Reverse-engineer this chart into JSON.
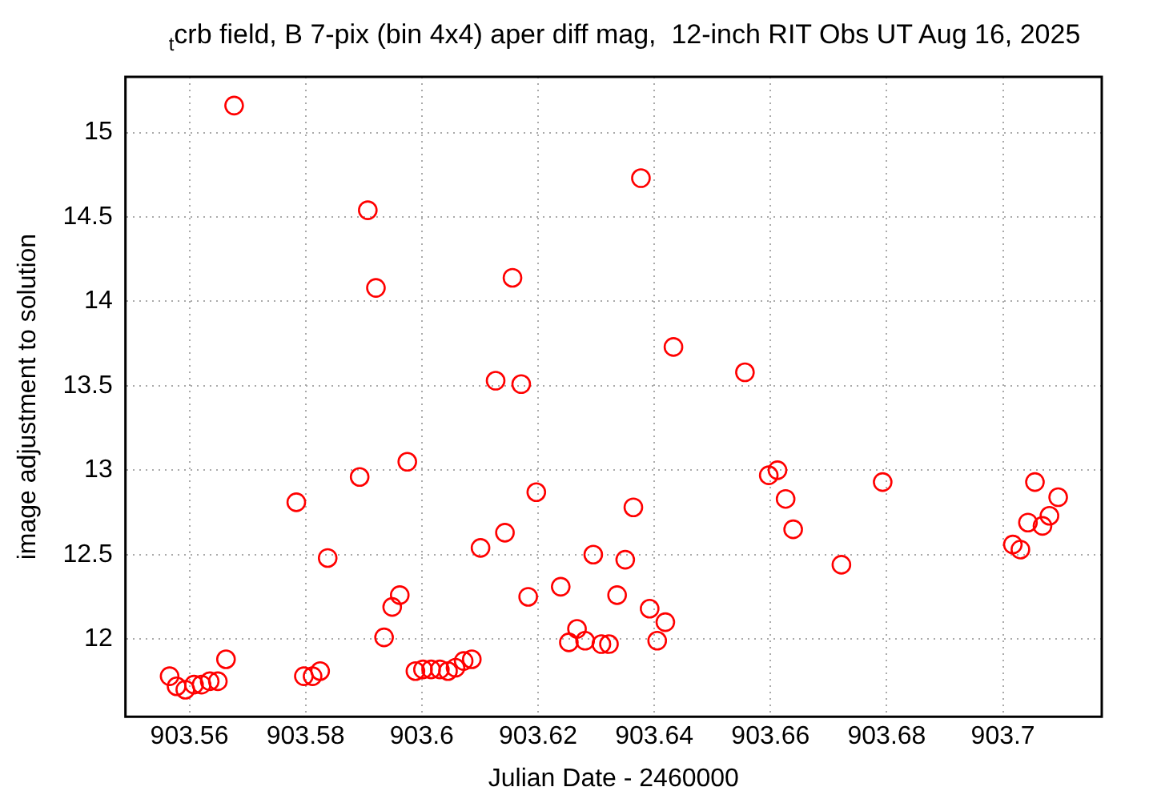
{
  "chart_data": {
    "type": "scatter",
    "title": "$_{t}$crb field, B 7-pix (bin 4x4) aper diff mag,  12-inch RIT Obs UT Aug 16, 2025",
    "xlabel": "Julian Date - 2460000",
    "ylabel": "image adjustment to solution",
    "x": [
      903.5566,
      903.5578,
      903.5593,
      903.5608,
      903.5621,
      903.5635,
      903.5649,
      903.5663,
      903.5677,
      903.5784,
      903.5797,
      903.5812,
      903.5825,
      903.5838,
      903.5893,
      903.5907,
      903.5921,
      903.5935,
      903.5949,
      903.5962,
      903.5975,
      903.5989,
      903.6002,
      903.6016,
      903.6031,
      903.6045,
      903.6058,
      903.6072,
      903.6086,
      903.6101,
      903.6127,
      903.6143,
      903.6156,
      903.6171,
      903.6183,
      903.6197,
      903.6239,
      903.6253,
      903.6267,
      903.6281,
      903.6295,
      903.6309,
      903.6322,
      903.6336,
      903.635,
      903.6364,
      903.6377,
      903.6392,
      903.6405,
      903.6419,
      903.6433,
      903.6556,
      903.6597,
      903.6612,
      903.6626,
      903.6639,
      903.6722,
      903.6793,
      903.7017,
      903.703,
      903.7043,
      903.7055,
      903.7068,
      903.708,
      903.7095
    ],
    "series": [
      {
        "color": "#ff0000",
        "values": [
          11.78,
          11.72,
          11.7,
          11.73,
          11.73,
          11.75,
          11.75,
          11.88,
          15.16,
          12.81,
          11.78,
          11.78,
          11.81,
          12.48,
          12.96,
          14.54,
          14.08,
          12.01,
          12.19,
          12.26,
          13.05,
          11.81,
          11.82,
          11.82,
          11.82,
          11.81,
          11.83,
          11.87,
          11.88,
          12.54,
          13.53,
          12.63,
          14.14,
          13.51,
          12.25,
          12.87,
          12.31,
          11.98,
          12.06,
          11.99,
          12.5,
          11.97,
          11.97,
          12.26,
          12.47,
          12.78,
          14.73,
          12.18,
          11.99,
          12.1,
          13.73,
          13.58,
          12.97,
          13.0,
          12.83,
          12.65,
          12.44,
          12.93,
          12.56,
          12.53,
          12.69,
          12.93,
          12.67,
          12.73,
          12.84
        ]
      }
    ],
    "xlim": [
      903.549,
      903.717
    ],
    "xticks": [
      903.56,
      903.58,
      903.6,
      903.62,
      903.64,
      903.66,
      903.68,
      903.7
    ],
    "ylim": [
      11.54,
      15.33
    ],
    "yticks": [
      12,
      12.5,
      13,
      13.5,
      14,
      14.5,
      15
    ],
    "grid": true,
    "marker": "circle"
  }
}
